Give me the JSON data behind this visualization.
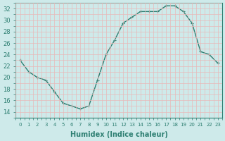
{
  "x": [
    0,
    1,
    2,
    3,
    4,
    5,
    6,
    7,
    8,
    9,
    10,
    11,
    12,
    13,
    14,
    15,
    16,
    17,
    18,
    19,
    20,
    21,
    22,
    23
  ],
  "y": [
    23.0,
    21.0,
    20.0,
    19.5,
    17.5,
    15.5,
    15.0,
    14.5,
    15.0,
    19.5,
    24.0,
    26.5,
    29.5,
    30.5,
    31.5,
    31.5,
    31.5,
    32.5,
    32.5,
    31.5,
    29.5,
    24.5,
    24.0,
    22.5
  ],
  "line_color": "#2e7f72",
  "marker": "+",
  "marker_size": 3,
  "line_width": 1.0,
  "xlabel": "Humidex (Indice chaleur)",
  "xlim": [
    -0.5,
    23.5
  ],
  "ylim": [
    13,
    33
  ],
  "yticks": [
    14,
    16,
    18,
    20,
    22,
    24,
    26,
    28,
    30,
    32
  ],
  "xticks": [
    0,
    1,
    2,
    3,
    4,
    5,
    6,
    7,
    8,
    9,
    10,
    11,
    12,
    13,
    14,
    15,
    16,
    17,
    18,
    19,
    20,
    21,
    22,
    23
  ],
  "xtick_labels": [
    "0",
    "1",
    "2",
    "3",
    "4",
    "5",
    "6",
    "7",
    "8",
    "9",
    "10",
    "11",
    "12",
    "13",
    "14",
    "15",
    "16",
    "17",
    "18",
    "19",
    "20",
    "21",
    "22",
    "23"
  ],
  "bg_color": "#ceeaea",
  "grid_color": "#e8b8b8",
  "grid_linewidth": 0.5,
  "xlabel_fontsize": 7,
  "ytick_fontsize": 6,
  "xtick_fontsize": 5
}
